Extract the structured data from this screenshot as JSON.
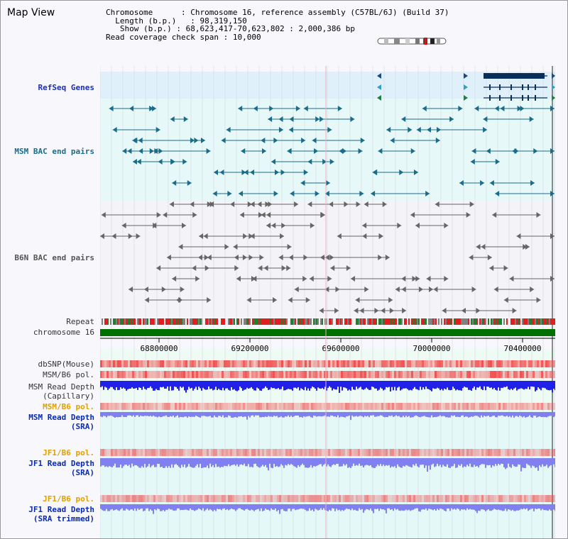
{
  "window": {
    "title": "Map View"
  },
  "info": {
    "chromosome_key": "Chromosome",
    "chromosome_value": "Chromosome 16, reference assembly (C57BL/6J) (Build 37)",
    "length_key": "Length (b.p.)",
    "length_value": "98,319,150",
    "show_key": "Show (b.p.)",
    "show_value": "68,623,417-70,623,802 : 2,000,386 bp",
    "coverage_key": "Read coverage check span",
    "coverage_value": "10,000"
  },
  "tracks": {
    "refseq_label": "RefSeq Genes",
    "msm_bac_label": "MSM BAC end pairs",
    "b6n_bac_label": "B6N BAC end pairs",
    "repeat_label": "Repeat",
    "chromosome_label": "chromosome 16",
    "dbsnp_label": "dbSNP(Mouse)",
    "msm_pol_label": "MSM/B6 pol.",
    "msm_depth_cap_label_1": "MSM Read Depth",
    "msm_depth_cap_label_2": "(Capillary)",
    "msm_pol_sra_label": "MSM/B6 pol.",
    "msm_depth_sra_label_1": "MSM Read Depth",
    "msm_depth_sra_label_2": "(SRA)",
    "jf1_pol_label": "JF1/B6 pol.",
    "jf1_depth_label_1": "JF1 Read Depth",
    "jf1_depth_label_2": "(SRA)",
    "jf1_pol_trim_label": "JF1/B6 pol.",
    "jf1_depth_trim_label_1": "JF1 Read Depth",
    "jf1_depth_trim_label_2": "(SRA trimmed)"
  },
  "axis": {
    "ticks": [
      "68800000",
      "69200000",
      "69600000",
      "70000000",
      "70400000"
    ]
  },
  "colors": {
    "refseq_bg": "#dff0fa",
    "msm_bg": "#e6f8f8",
    "b6n_bg": "#f3f3f8",
    "chromosome_bar": "#007000",
    "snp": "#f05050",
    "depth_blue": "#2020e8",
    "depth_light": "#8080f0",
    "msm_feature": "#1a6c8a",
    "b6n_feature": "#666666",
    "gene_dark": "#0a2e5a"
  }
}
